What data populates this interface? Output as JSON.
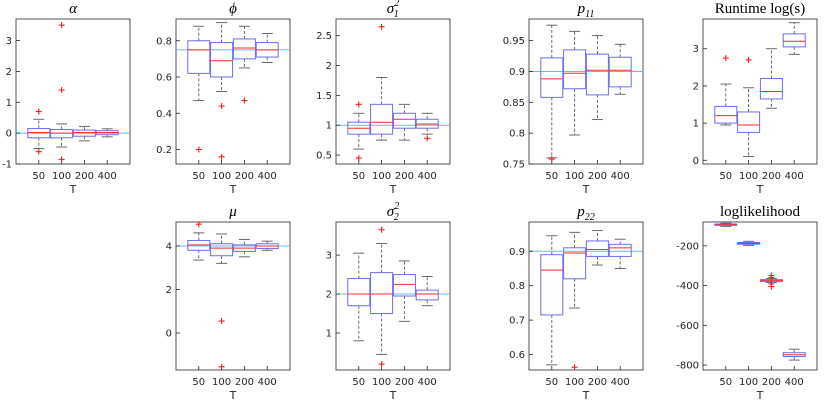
{
  "chart_data": [
    {
      "type": "box",
      "id": "alpha",
      "title": "α",
      "title_sub": "",
      "title_sup": "",
      "title_style": "italic",
      "xlabel": "T",
      "ylabel": "",
      "categories": [
        "50",
        "100",
        "200",
        "400"
      ],
      "ylim": [
        -1,
        3.7
      ],
      "yticks": [
        -1,
        0,
        1,
        2,
        3
      ],
      "yticklabels": [
        "-1",
        "0",
        "1",
        "2",
        "3"
      ],
      "reference_line": 0,
      "boxes": [
        {
          "q1": -0.15,
          "median": 0.02,
          "q3": 0.15,
          "whisker_low": -0.5,
          "whisker_high": 0.45,
          "outliers": [
            0.7,
            -0.6
          ]
        },
        {
          "q1": -0.15,
          "median": 0.0,
          "q3": 0.12,
          "whisker_low": -0.45,
          "whisker_high": 0.3,
          "outliers": [
            3.5,
            1.4,
            -0.85
          ]
        },
        {
          "q1": -0.1,
          "median": 0.02,
          "q3": 0.1,
          "whisker_low": -0.25,
          "whisker_high": 0.22,
          "outliers": []
        },
        {
          "q1": -0.05,
          "median": 0.02,
          "q3": 0.08,
          "whisker_low": -0.12,
          "whisker_high": 0.14,
          "outliers": []
        }
      ]
    },
    {
      "type": "box",
      "id": "phi",
      "title": "ϕ",
      "title_sub": "",
      "title_sup": "",
      "title_style": "italic",
      "xlabel": "T",
      "ylabel": "",
      "categories": [
        "50",
        "100",
        "200",
        "400"
      ],
      "ylim": [
        0.12,
        0.92
      ],
      "yticks": [
        0.2,
        0.4,
        0.6,
        0.8
      ],
      "yticklabels": [
        "0.2",
        "0.4",
        "0.6",
        "0.8"
      ],
      "reference_line": 0.75,
      "boxes": [
        {
          "q1": 0.62,
          "median": 0.75,
          "q3": 0.8,
          "whisker_low": 0.47,
          "whisker_high": 0.88,
          "outliers": [
            0.2
          ]
        },
        {
          "q1": 0.6,
          "median": 0.69,
          "q3": 0.79,
          "whisker_low": 0.52,
          "whisker_high": 0.9,
          "outliers": [
            0.44,
            0.16
          ]
        },
        {
          "q1": 0.7,
          "median": 0.76,
          "q3": 0.81,
          "whisker_low": 0.65,
          "whisker_high": 0.88,
          "outliers": [
            0.47
          ]
        },
        {
          "q1": 0.71,
          "median": 0.75,
          "q3": 0.79,
          "whisker_low": 0.68,
          "whisker_high": 0.84,
          "outliers": []
        }
      ]
    },
    {
      "type": "box",
      "id": "sigma1",
      "title": "σ",
      "title_sub": "1",
      "title_sup": "2",
      "title_style": "italic",
      "xlabel": "T",
      "ylabel": "",
      "categories": [
        "50",
        "100",
        "200",
        "400"
      ],
      "ylim": [
        0.35,
        2.78
      ],
      "yticks": [
        0.5,
        1,
        1.5,
        2,
        2.5
      ],
      "yticklabels": [
        "0.5",
        "1",
        "1.5",
        "2",
        "2.5"
      ],
      "reference_line": 1,
      "boxes": [
        {
          "q1": 0.85,
          "median": 0.95,
          "q3": 1.05,
          "whisker_low": 0.6,
          "whisker_high": 1.2,
          "outliers": [
            1.35,
            0.45
          ]
        },
        {
          "q1": 0.85,
          "median": 1.05,
          "q3": 1.35,
          "whisker_low": 0.75,
          "whisker_high": 1.8,
          "outliers": [
            2.65
          ]
        },
        {
          "q1": 0.95,
          "median": 1.1,
          "q3": 1.2,
          "whisker_low": 0.75,
          "whisker_high": 1.35,
          "outliers": []
        },
        {
          "q1": 0.95,
          "median": 1.02,
          "q3": 1.1,
          "whisker_low": 0.85,
          "whisker_high": 1.2,
          "outliers": [
            0.78
          ]
        }
      ]
    },
    {
      "type": "box",
      "id": "p11",
      "title": "p",
      "title_sub": "11",
      "title_sup": "",
      "title_style": "italic",
      "xlabel": "T",
      "ylabel": "",
      "categories": [
        "50",
        "100",
        "200",
        "400"
      ],
      "ylim": [
        0.75,
        0.985
      ],
      "yticks": [
        0.75,
        0.8,
        0.85,
        0.9,
        0.95
      ],
      "yticklabels": [
        "0.75",
        "0.8",
        "0.85",
        "0.9",
        "0.95"
      ],
      "reference_line": 0.9,
      "boxes": [
        {
          "q1": 0.858,
          "median": 0.888,
          "q3": 0.922,
          "whisker_low": 0.76,
          "whisker_high": 0.975,
          "outliers": [
            0.758
          ]
        },
        {
          "q1": 0.872,
          "median": 0.897,
          "q3": 0.935,
          "whisker_low": 0.797,
          "whisker_high": 0.965,
          "outliers": []
        },
        {
          "q1": 0.862,
          "median": 0.902,
          "q3": 0.928,
          "whisker_low": 0.822,
          "whisker_high": 0.958,
          "outliers": []
        },
        {
          "q1": 0.875,
          "median": 0.902,
          "q3": 0.923,
          "whisker_low": 0.863,
          "whisker_high": 0.944,
          "outliers": []
        }
      ]
    },
    {
      "type": "box",
      "id": "runtime",
      "title": "Runtime log(s)",
      "title_sub": "",
      "title_sup": "",
      "title_style": "normal",
      "xlabel": "T",
      "ylabel": "",
      "categories": [
        "50",
        "100",
        "200",
        "400"
      ],
      "ylim": [
        -0.1,
        3.8
      ],
      "yticks": [
        0,
        1,
        2,
        3
      ],
      "yticklabels": [
        "0",
        "1",
        "2",
        "3"
      ],
      "reference_line": null,
      "boxes": [
        {
          "q1": 1.0,
          "median": 1.2,
          "q3": 1.45,
          "whisker_low": 0.95,
          "whisker_high": 2.05,
          "outliers": [
            2.75
          ]
        },
        {
          "q1": 0.75,
          "median": 0.95,
          "q3": 1.3,
          "whisker_low": 0.1,
          "whisker_high": 1.95,
          "outliers": [
            2.7
          ]
        },
        {
          "q1": 1.65,
          "median": 1.85,
          "q3": 2.2,
          "whisker_low": 1.4,
          "whisker_high": 3.0,
          "outliers": []
        },
        {
          "q1": 3.05,
          "median": 3.2,
          "q3": 3.4,
          "whisker_low": 2.85,
          "whisker_high": 3.7,
          "outliers": []
        }
      ]
    },
    {
      "type": "box",
      "id": "mu",
      "title": "μ",
      "title_sub": "",
      "title_sup": "",
      "title_style": "italic",
      "xlabel": "T",
      "ylabel": "",
      "categories": [
        "50",
        "100",
        "200",
        "400"
      ],
      "ylim": [
        -1.7,
        5.1
      ],
      "yticks": [
        0,
        2,
        4
      ],
      "yticklabels": [
        "0",
        "2",
        "4"
      ],
      "reference_line": 4,
      "boxes": [
        {
          "q1": 3.8,
          "median": 4.05,
          "q3": 4.25,
          "whisker_low": 3.35,
          "whisker_high": 4.6,
          "outliers": [
            5.0
          ]
        },
        {
          "q1": 3.55,
          "median": 3.9,
          "q3": 4.1,
          "whisker_low": 3.2,
          "whisker_high": 4.55,
          "outliers": [
            0.55,
            -1.55
          ]
        },
        {
          "q1": 3.75,
          "median": 3.9,
          "q3": 4.05,
          "whisker_low": 3.5,
          "whisker_high": 4.3,
          "outliers": []
        },
        {
          "q1": 3.88,
          "median": 4.0,
          "q3": 4.1,
          "whisker_low": 3.8,
          "whisker_high": 4.22,
          "outliers": []
        }
      ]
    },
    {
      "type": "box",
      "id": "sigma2",
      "title": "σ",
      "title_sub": "2",
      "title_sup": "2",
      "title_style": "italic",
      "xlabel": "T",
      "ylabel": "",
      "categories": [
        "50",
        "100",
        "200",
        "400"
      ],
      "ylim": [
        0.05,
        3.85
      ],
      "yticks": [
        1,
        2,
        3
      ],
      "yticklabels": [
        "1",
        "2",
        "3"
      ],
      "reference_line": 2,
      "boxes": [
        {
          "q1": 1.7,
          "median": 2.0,
          "q3": 2.4,
          "whisker_low": 0.8,
          "whisker_high": 3.05,
          "outliers": []
        },
        {
          "q1": 1.5,
          "median": 2.0,
          "q3": 2.55,
          "whisker_low": 0.45,
          "whisker_high": 3.3,
          "outliers": [
            3.65,
            0.2
          ]
        },
        {
          "q1": 1.95,
          "median": 2.25,
          "q3": 2.5,
          "whisker_low": 1.3,
          "whisker_high": 2.85,
          "outliers": []
        },
        {
          "q1": 1.85,
          "median": 2.0,
          "q3": 2.1,
          "whisker_low": 1.7,
          "whisker_high": 2.45,
          "outliers": []
        }
      ]
    },
    {
      "type": "box",
      "id": "p22",
      "title": "p",
      "title_sub": "22",
      "title_sup": "",
      "title_style": "italic",
      "xlabel": "T",
      "ylabel": "",
      "categories": [
        "50",
        "100",
        "200",
        "400"
      ],
      "ylim": [
        0.555,
        0.985
      ],
      "yticks": [
        0.6,
        0.7,
        0.8,
        0.9
      ],
      "yticklabels": [
        "0.6",
        "0.7",
        "0.8",
        "0.9"
      ],
      "reference_line": 0.9,
      "boxes": [
        {
          "q1": 0.715,
          "median": 0.845,
          "q3": 0.89,
          "whisker_low": 0.57,
          "whisker_high": 0.945,
          "outliers": []
        },
        {
          "q1": 0.82,
          "median": 0.895,
          "q3": 0.91,
          "whisker_low": 0.735,
          "whisker_high": 0.955,
          "outliers": [
            0.563
          ]
        },
        {
          "q1": 0.885,
          "median": 0.905,
          "q3": 0.93,
          "whisker_low": 0.86,
          "whisker_high": 0.96,
          "outliers": []
        },
        {
          "q1": 0.885,
          "median": 0.91,
          "q3": 0.92,
          "whisker_low": 0.85,
          "whisker_high": 0.935,
          "outliers": []
        }
      ]
    },
    {
      "type": "box",
      "id": "loglik",
      "title": "loglikelihood",
      "title_sub": "",
      "title_sup": "",
      "title_style": "normal",
      "xlabel": "T",
      "ylabel": "",
      "categories": [
        "50",
        "100",
        "200",
        "400"
      ],
      "ylim": [
        -825,
        -80
      ],
      "yticks": [
        -800,
        -600,
        -400,
        -200
      ],
      "yticklabels": [
        "-800",
        "-600",
        "-400",
        "-200"
      ],
      "reference_line": null,
      "boxes": [
        {
          "q1": -97,
          "median": -94,
          "q3": -90,
          "whisker_low": -102,
          "whisker_high": -86,
          "outliers": []
        },
        {
          "q1": -192,
          "median": -188,
          "q3": -183,
          "whisker_low": -198,
          "whisker_high": -177,
          "outliers": []
        },
        {
          "q1": -380,
          "median": -375,
          "q3": -370,
          "whisker_low": -385,
          "whisker_high": -365,
          "outliers": [
            -350,
            -360,
            -392,
            -405
          ]
        },
        {
          "q1": -757,
          "median": -748,
          "q3": -738,
          "whisker_low": -775,
          "whisker_high": -720,
          "outliers": []
        }
      ]
    }
  ],
  "colors": {
    "box": "#6d6df0",
    "median": "#ff2a2a",
    "whisker": "#5a5a5a",
    "outlier": "#ff1a1a",
    "reference": "#6fb7e8",
    "axis": "#262626"
  }
}
